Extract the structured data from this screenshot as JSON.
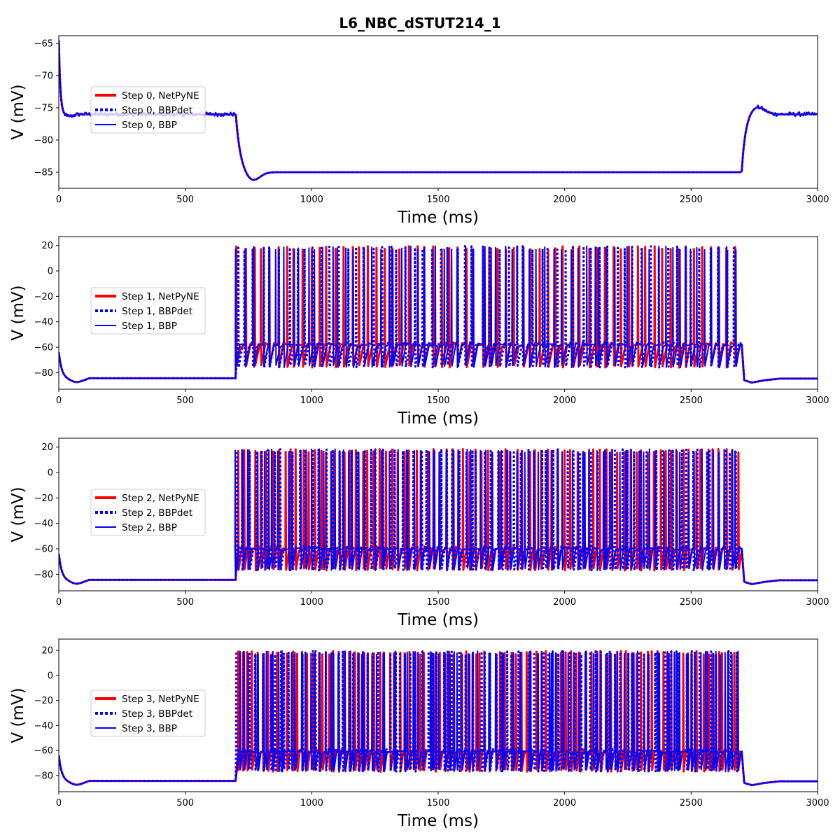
{
  "title": "L6_NBC_dSTUT214_1",
  "colors": {
    "netpyne": "#ff0000",
    "bbp": "#0000ff"
  },
  "chart_data": [
    {
      "type": "line",
      "xlabel": "Time (ms)",
      "ylabel": "V (mV)",
      "xlim": [
        0,
        3000
      ],
      "ylim": [
        -87.5,
        -63.8
      ],
      "xticks": [
        0,
        500,
        1000,
        1500,
        2000,
        2500,
        3000
      ],
      "yticks": [
        -85,
        -80,
        -75,
        -70,
        -65
      ],
      "stim_window_ms": [
        700,
        2700
      ],
      "rest_mV": -76,
      "plateau_mV": -85,
      "trough_mV": -86.4,
      "series": [
        {
          "name": "Step 0, NetPyNE",
          "color": "#ff0000",
          "style": "solid-thick"
        },
        {
          "name": "Step 0, BBPdet",
          "color": "#0000ff",
          "style": "dotted"
        },
        {
          "name": "Step 0, BBP",
          "color": "#0000ff",
          "style": "solid"
        }
      ]
    },
    {
      "type": "line",
      "xlabel": "Time (ms)",
      "ylabel": "V (mV)",
      "xlim": [
        0,
        3000
      ],
      "ylim": [
        -93,
        27
      ],
      "xticks": [
        0,
        500,
        1000,
        1500,
        2000,
        2500,
        3000
      ],
      "yticks": [
        -80,
        -60,
        -40,
        -20,
        0,
        20
      ],
      "stim_window_ms": [
        700,
        2700
      ],
      "rest_mV": -85,
      "spike_peak_mV": 18,
      "ahp_mV": -75,
      "interspike_mV": -58,
      "series": [
        {
          "name": "Step 1, NetPyNE",
          "color": "#ff0000",
          "style": "solid-thick",
          "spike_count": 62
        },
        {
          "name": "Step 1, BBPdet",
          "color": "#0000ff",
          "style": "dotted",
          "spike_count": 60
        },
        {
          "name": "Step 1, BBP",
          "color": "#0000ff",
          "style": "solid",
          "spike_count": 64
        }
      ]
    },
    {
      "type": "line",
      "xlabel": "Time (ms)",
      "ylabel": "V (mV)",
      "xlim": [
        0,
        3000
      ],
      "ylim": [
        -93,
        27
      ],
      "xticks": [
        0,
        500,
        1000,
        1500,
        2000,
        2500,
        3000
      ],
      "yticks": [
        -80,
        -60,
        -40,
        -20,
        0,
        20
      ],
      "stim_window_ms": [
        700,
        2700
      ],
      "rest_mV": -85,
      "spike_peak_mV": 17,
      "ahp_mV": -76,
      "interspike_mV": -60,
      "series": [
        {
          "name": "Step 2, NetPyNE",
          "color": "#ff0000",
          "style": "solid-thick",
          "spike_count": 85
        },
        {
          "name": "Step 2, BBPdet",
          "color": "#0000ff",
          "style": "dotted",
          "spike_count": 80
        },
        {
          "name": "Step 2, BBP",
          "color": "#0000ff",
          "style": "solid",
          "spike_count": 82
        }
      ]
    },
    {
      "type": "line",
      "xlabel": "Time (ms)",
      "ylabel": "V (mV)",
      "xlim": [
        0,
        3000
      ],
      "ylim": [
        -93,
        29
      ],
      "xticks": [
        0,
        500,
        1000,
        1500,
        2000,
        2500,
        3000
      ],
      "yticks": [
        -80,
        -60,
        -40,
        -20,
        0,
        20
      ],
      "stim_window_ms": [
        700,
        2700
      ],
      "rest_mV": -85,
      "spike_peak_mV": 18,
      "ahp_mV": -76,
      "interspike_mV": -61,
      "series": [
        {
          "name": "Step 3, NetPyNE",
          "color": "#ff0000",
          "style": "solid-thick",
          "spike_count": 100
        },
        {
          "name": "Step 3, BBPdet",
          "color": "#0000ff",
          "style": "dotted",
          "spike_count": 96
        },
        {
          "name": "Step 3, BBP",
          "color": "#0000ff",
          "style": "solid",
          "spike_count": 98
        }
      ]
    }
  ]
}
